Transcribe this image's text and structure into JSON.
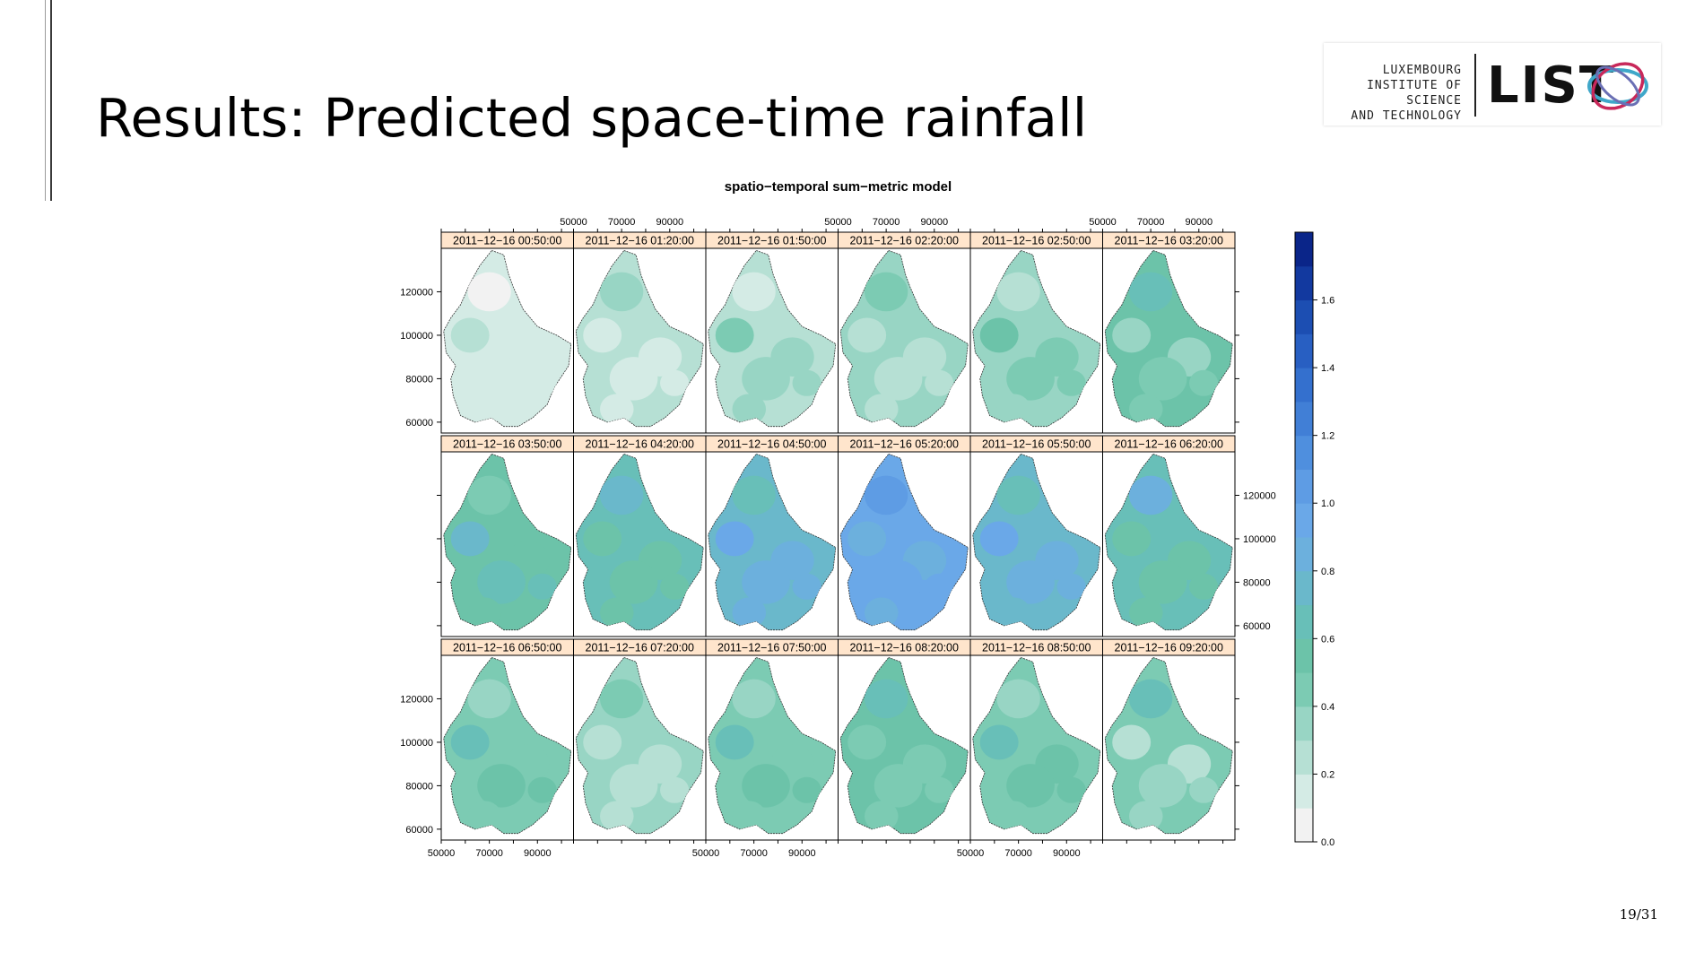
{
  "slide": {
    "title": "Results: Predicted space-time rainfall",
    "page": "19/31"
  },
  "logo": {
    "line1": "LUXEMBOURG",
    "line2": "INSTITUTE OF SCIENCE",
    "line3": "AND TECHNOLOGY",
    "mark": "LIST",
    "colors": [
      "#3fa7c9",
      "#c8285a",
      "#6a6fb4"
    ]
  },
  "chart_data": {
    "type": "heatmap",
    "title": "spatio−temporal sum−metric model",
    "layout": {
      "rows": 3,
      "cols": 6
    },
    "panels": [
      {
        "label": "2011−12−16 00:50:00",
        "level": 0.1
      },
      {
        "label": "2011−12−16 01:20:00",
        "level": 0.22
      },
      {
        "label": "2011−12−16 01:50:00",
        "level": 0.25
      },
      {
        "label": "2011−12−16 02:20:00",
        "level": 0.3
      },
      {
        "label": "2011−12−16 02:50:00",
        "level": 0.35
      },
      {
        "label": "2011−12−16 03:20:00",
        "level": 0.5
      },
      {
        "label": "2011−12−16 03:50:00",
        "level": 0.55
      },
      {
        "label": "2011−12−16 04:20:00",
        "level": 0.62
      },
      {
        "label": "2011−12−16 04:50:00",
        "level": 0.75
      },
      {
        "label": "2011−12−16 05:20:00",
        "level": 0.95
      },
      {
        "label": "2011−12−16 05:50:00",
        "level": 0.75
      },
      {
        "label": "2011−12−16 06:20:00",
        "level": 0.65
      },
      {
        "label": "2011−12−16 06:50:00",
        "level": 0.45
      },
      {
        "label": "2011−12−16 07:20:00",
        "level": 0.33
      },
      {
        "label": "2011−12−16 07:50:00",
        "level": 0.42
      },
      {
        "label": "2011−12−16 08:20:00",
        "level": 0.5
      },
      {
        "label": "2011−12−16 08:50:00",
        "level": 0.45
      },
      {
        "label": "2011−12−16 09:20:00",
        "level": 0.42
      }
    ],
    "x_ticks": [
      "50000",
      "70000",
      "90000"
    ],
    "x_range": [
      50000,
      105000
    ],
    "y_ticks": [
      "60000",
      "80000",
      "100000",
      "120000"
    ],
    "y_range": [
      55000,
      140000
    ],
    "colorbar": {
      "ticks": [
        "0.0",
        "0.2",
        "0.4",
        "0.6",
        "0.8",
        "1.0",
        "1.2",
        "1.4",
        "1.6"
      ],
      "range": [
        0,
        1.8
      ],
      "colors": [
        "#f2f2f2",
        "#d4ebe5",
        "#b6e0d4",
        "#98d5c4",
        "#7ccbb3",
        "#6cc3a9",
        "#68bfb8",
        "#6ab8cb",
        "#6cb0dd",
        "#6aa8e8",
        "#5e9ce4",
        "#4f8fde",
        "#417fd6",
        "#3470ce",
        "#285fc2",
        "#1c4eb2",
        "#12399f",
        "#0a2589"
      ]
    }
  }
}
